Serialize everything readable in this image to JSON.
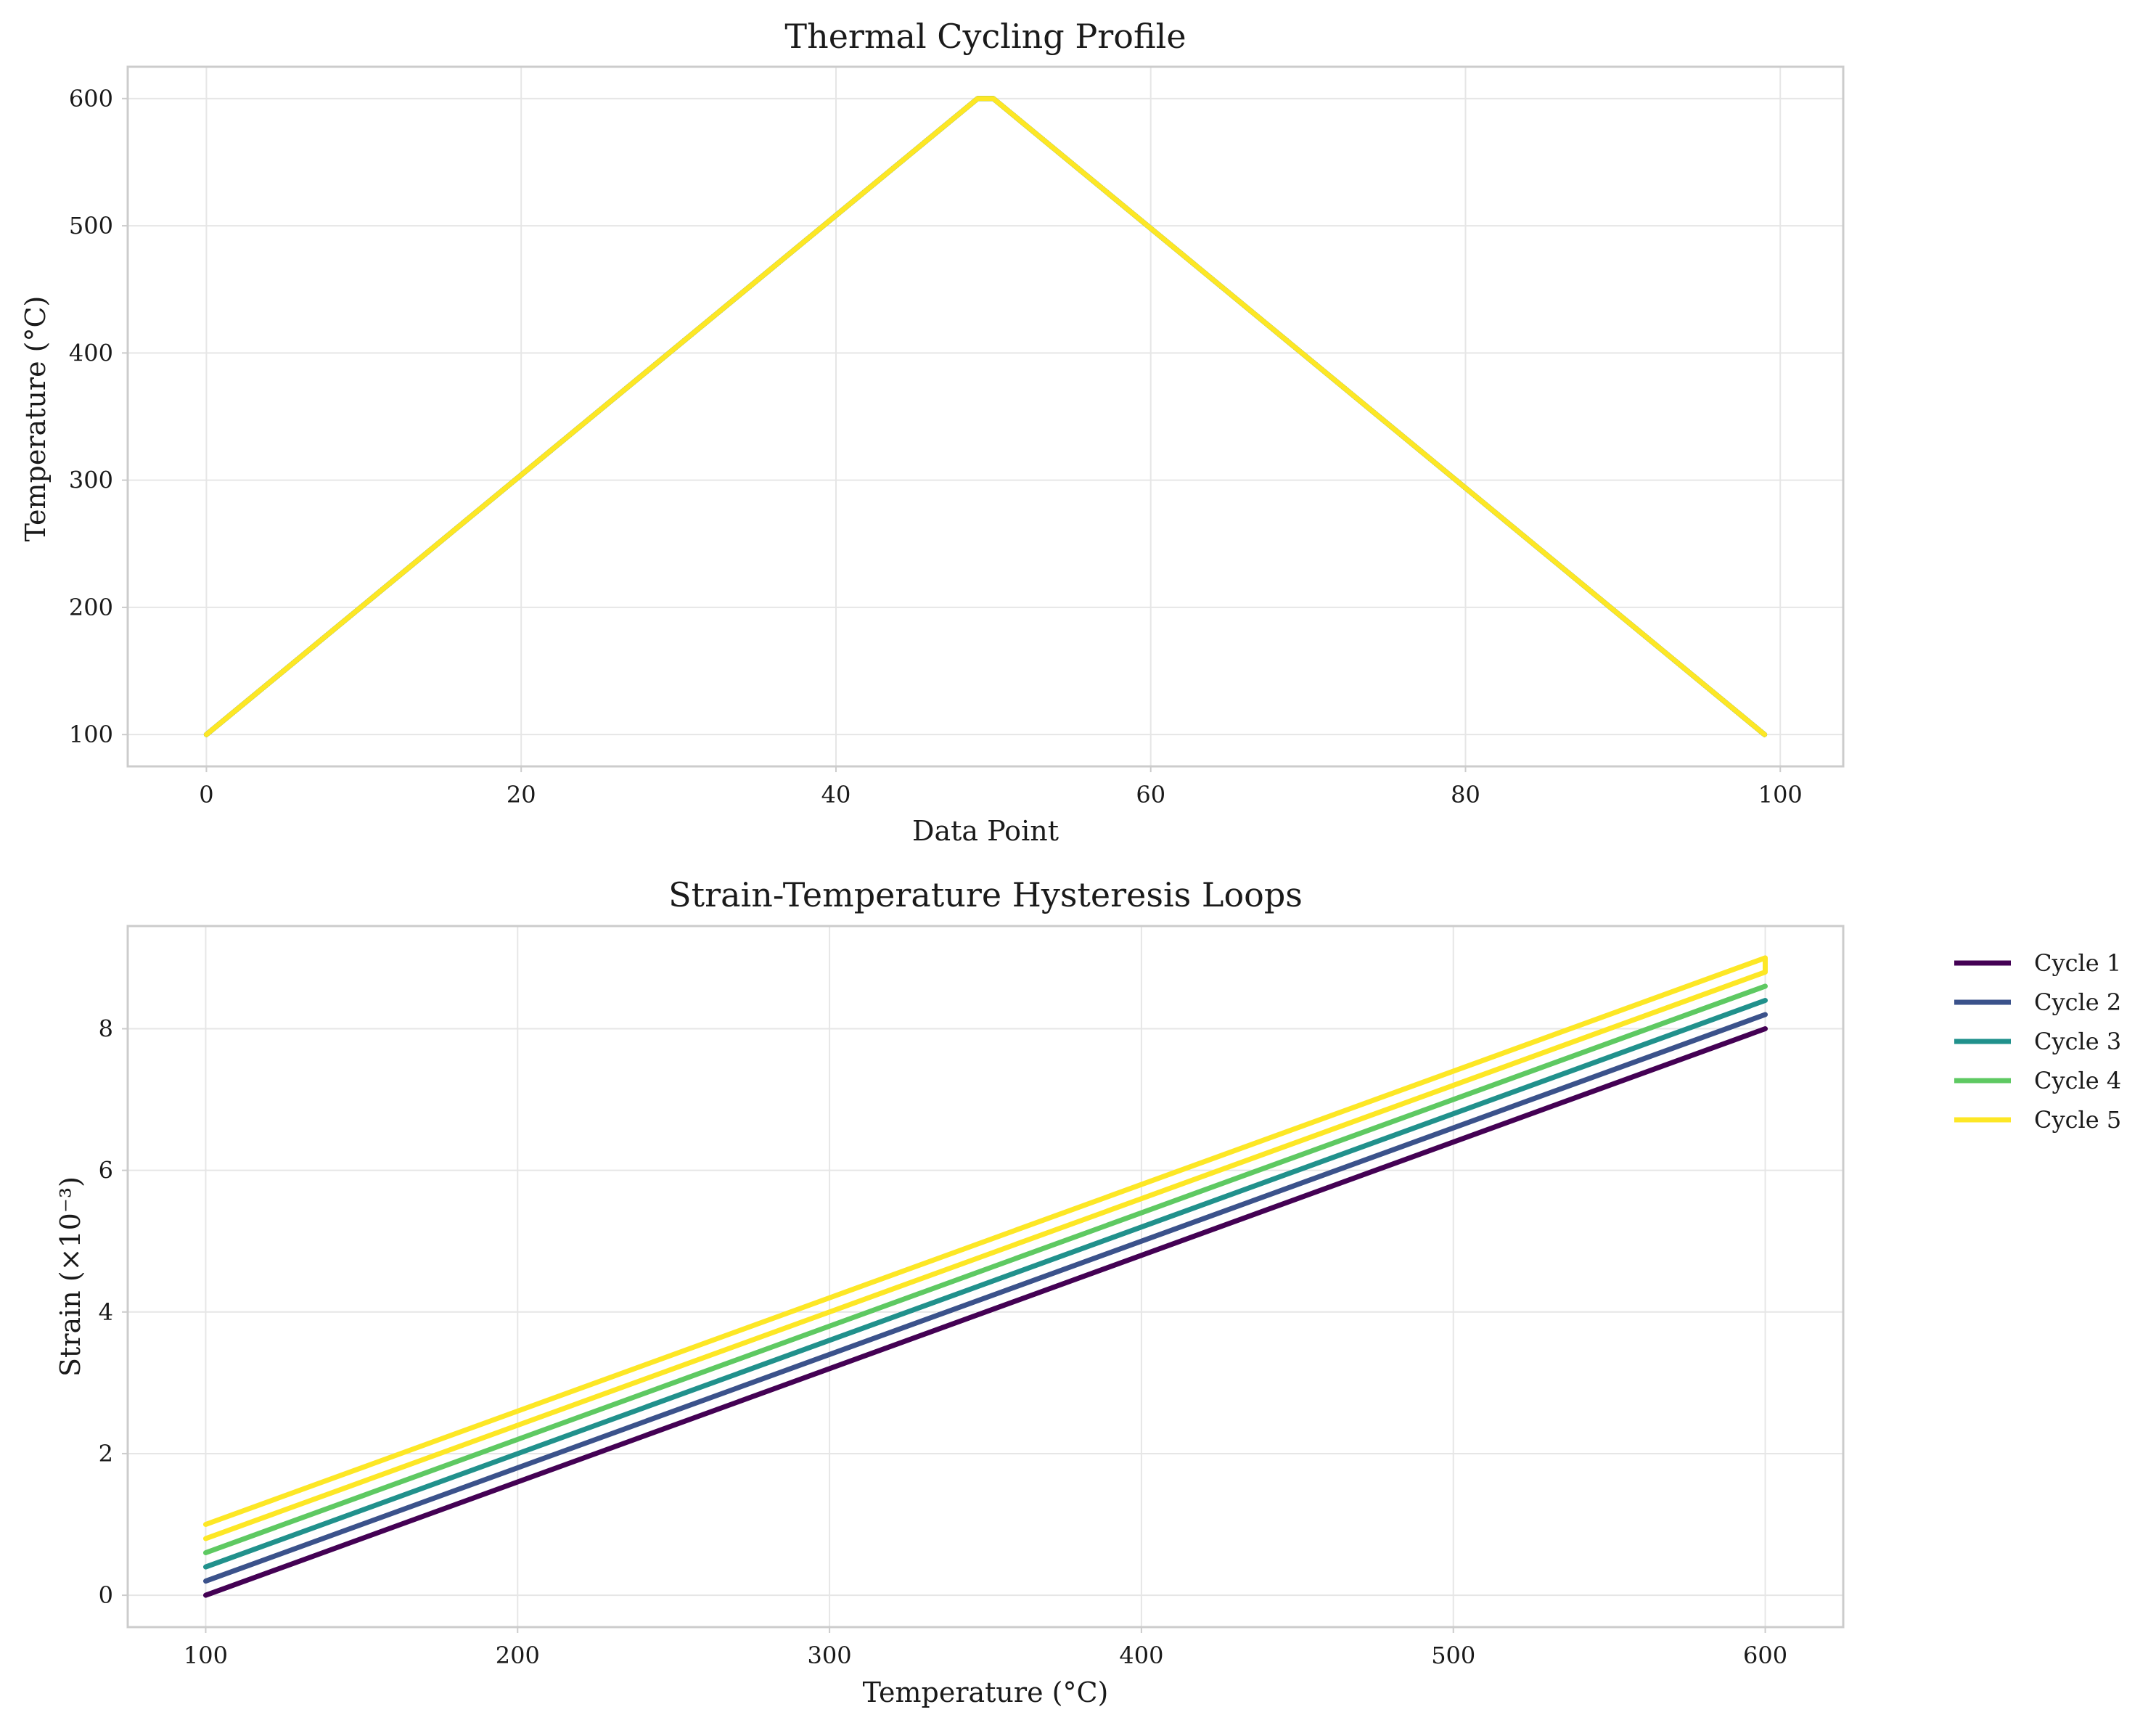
{
  "chart_data": [
    {
      "type": "line",
      "title": "Thermal Cycling Profile",
      "xlabel": "Data Point",
      "ylabel": "Temperature (°C)",
      "xlim": [
        -5,
        104
      ],
      "ylim": [
        75,
        625
      ],
      "xticks": [
        0,
        20,
        40,
        60,
        80,
        100
      ],
      "yticks": [
        100,
        200,
        300,
        400,
        500,
        600
      ],
      "grid": true,
      "series": [
        {
          "name": "Cycle 1",
          "color": "#440154",
          "x": [
            0,
            49,
            50,
            99
          ],
          "values": [
            100,
            600,
            600,
            100
          ]
        },
        {
          "name": "Cycle 2",
          "color": "#3b528b",
          "x": [
            0,
            49,
            50,
            99
          ],
          "values": [
            100,
            600,
            600,
            100
          ]
        },
        {
          "name": "Cycle 3",
          "color": "#21918c",
          "x": [
            0,
            49,
            50,
            99
          ],
          "values": [
            100,
            600,
            600,
            100
          ]
        },
        {
          "name": "Cycle 4",
          "color": "#5ec962",
          "x": [
            0,
            49,
            50,
            99
          ],
          "values": [
            100,
            600,
            600,
            100
          ]
        },
        {
          "name": "Cycle 5",
          "color": "#fde725",
          "x": [
            0,
            49,
            50,
            99
          ],
          "values": [
            100,
            600,
            600,
            100
          ]
        }
      ]
    },
    {
      "type": "line",
      "title": "Strain-Temperature Hysteresis Loops",
      "xlabel": "Temperature (°C)",
      "ylabel": "Strain (×10⁻³)",
      "xlim": [
        75,
        625
      ],
      "ylim": [
        -0.45,
        9.45
      ],
      "xticks": [
        100,
        200,
        300,
        400,
        500,
        600
      ],
      "yticks": [
        0,
        2,
        4,
        6,
        8
      ],
      "grid": true,
      "legend": "outside-upper-right",
      "series": [
        {
          "name": "Cycle 1",
          "color": "#440154",
          "x": [
            100,
            600,
            600,
            100
          ],
          "values": [
            0.0,
            8.0,
            8.0,
            0.0
          ]
        },
        {
          "name": "Cycle 2",
          "color": "#3b528b",
          "x": [
            100,
            600,
            600,
            100
          ],
          "values": [
            0.2,
            8.2,
            8.2,
            0.2
          ]
        },
        {
          "name": "Cycle 3",
          "color": "#21918c",
          "x": [
            100,
            600,
            600,
            100
          ],
          "values": [
            0.4,
            8.4,
            8.4,
            0.4
          ]
        },
        {
          "name": "Cycle 4",
          "color": "#5ec962",
          "x": [
            100,
            600,
            600,
            100
          ],
          "values": [
            0.6,
            8.6,
            8.6,
            0.6
          ]
        },
        {
          "name": "Cycle 5",
          "color": "#fde725",
          "x": [
            100,
            600,
            600,
            100
          ],
          "values": [
            0.8,
            8.8,
            9.0,
            1.0
          ]
        }
      ]
    }
  ]
}
